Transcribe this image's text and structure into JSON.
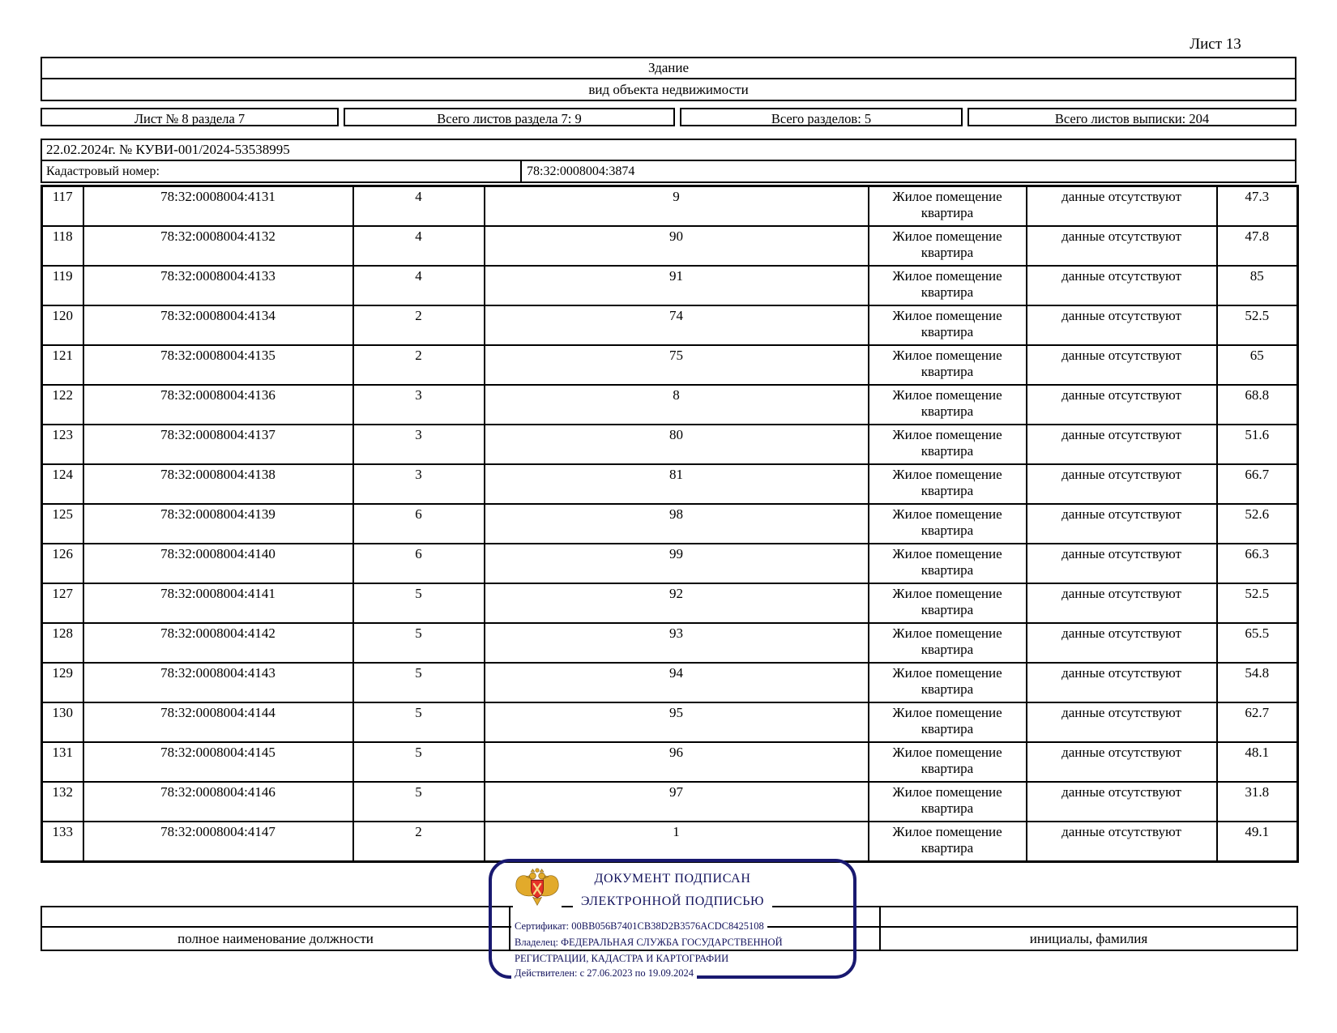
{
  "page": {
    "sheet_label": "Лист 13"
  },
  "object_header": {
    "title": "Здание",
    "subtitle": "вид объекта недвижимости"
  },
  "meta_row": {
    "cells": [
      "Лист № 8 раздела 7",
      "Всего листов раздела 7: 9",
      "Всего разделов: 5",
      "Всего листов выписки: 204"
    ]
  },
  "request": {
    "date_line": "22.02.2024г. № КУВИ-001/2024-53538995",
    "cadastral_label": "Кадастровый номер:",
    "cadastral_value": "78:32:0008004:3874"
  },
  "table": {
    "rows": [
      [
        "117",
        "78:32:0008004:4131",
        "4",
        "9",
        "Жилое помещение квартира",
        "данные отсутствуют",
        "47.3"
      ],
      [
        "118",
        "78:32:0008004:4132",
        "4",
        "90",
        "Жилое помещение квартира",
        "данные отсутствуют",
        "47.8"
      ],
      [
        "119",
        "78:32:0008004:4133",
        "4",
        "91",
        "Жилое помещение квартира",
        "данные отсутствуют",
        "85"
      ],
      [
        "120",
        "78:32:0008004:4134",
        "2",
        "74",
        "Жилое помещение квартира",
        "данные отсутствуют",
        "52.5"
      ],
      [
        "121",
        "78:32:0008004:4135",
        "2",
        "75",
        "Жилое помещение квартира",
        "данные отсутствуют",
        "65"
      ],
      [
        "122",
        "78:32:0008004:4136",
        "3",
        "8",
        "Жилое помещение квартира",
        "данные отсутствуют",
        "68.8"
      ],
      [
        "123",
        "78:32:0008004:4137",
        "3",
        "80",
        "Жилое помещение квартира",
        "данные отсутствуют",
        "51.6"
      ],
      [
        "124",
        "78:32:0008004:4138",
        "3",
        "81",
        "Жилое помещение квартира",
        "данные отсутствуют",
        "66.7"
      ],
      [
        "125",
        "78:32:0008004:4139",
        "6",
        "98",
        "Жилое помещение квартира",
        "данные отсутствуют",
        "52.6"
      ],
      [
        "126",
        "78:32:0008004:4140",
        "6",
        "99",
        "Жилое помещение квартира",
        "данные отсутствуют",
        "66.3"
      ],
      [
        "127",
        "78:32:0008004:4141",
        "5",
        "92",
        "Жилое помещение квартира",
        "данные отсутствуют",
        "52.5"
      ],
      [
        "128",
        "78:32:0008004:4142",
        "5",
        "93",
        "Жилое помещение квартира",
        "данные отсутствуют",
        "65.5"
      ],
      [
        "129",
        "78:32:0008004:4143",
        "5",
        "94",
        "Жилое помещение квартира",
        "данные отсутствуют",
        "54.8"
      ],
      [
        "130",
        "78:32:0008004:4144",
        "5",
        "95",
        "Жилое помещение квартира",
        "данные отсутствуют",
        "62.7"
      ],
      [
        "131",
        "78:32:0008004:4145",
        "5",
        "96",
        "Жилое помещение квартира",
        "данные отсутствуют",
        "48.1"
      ],
      [
        "132",
        "78:32:0008004:4146",
        "5",
        "97",
        "Жилое помещение квартира",
        "данные отсутствуют",
        "31.8"
      ],
      [
        "133",
        "78:32:0008004:4147",
        "2",
        "1",
        "Жилое помещение квартира",
        "данные отсутствуют",
        "49.1"
      ]
    ]
  },
  "footer": {
    "left_label": "полное наименование должности",
    "right_label": "инициалы, фамилия"
  },
  "stamp": {
    "title_line1": "ДОКУМЕНТ ПОДПИСАН",
    "title_line2": "ЭЛЕКТРОННОЙ ПОДПИСЬЮ",
    "certificate_line": "Сертификат: 00BB056B7401CB38D2B3576ACDC8425108",
    "owner_line1": "Владелец: ФЕДЕРАЛЬНАЯ СЛУЖБА ГОСУДАРСТВЕННОЙ",
    "owner_line2": "РЕГИСТРАЦИИ, КАДАСТРА И КАРТОГРАФИИ",
    "validity_line": "Действителен: с 27.06.2023 по 19.09.2024",
    "border_color": "#191970",
    "text_color": "#13135c",
    "emblem_icon": "rosreestr-double-headed-eagle",
    "emblem_gold": "#e2aa2b",
    "emblem_red": "#e73127"
  }
}
